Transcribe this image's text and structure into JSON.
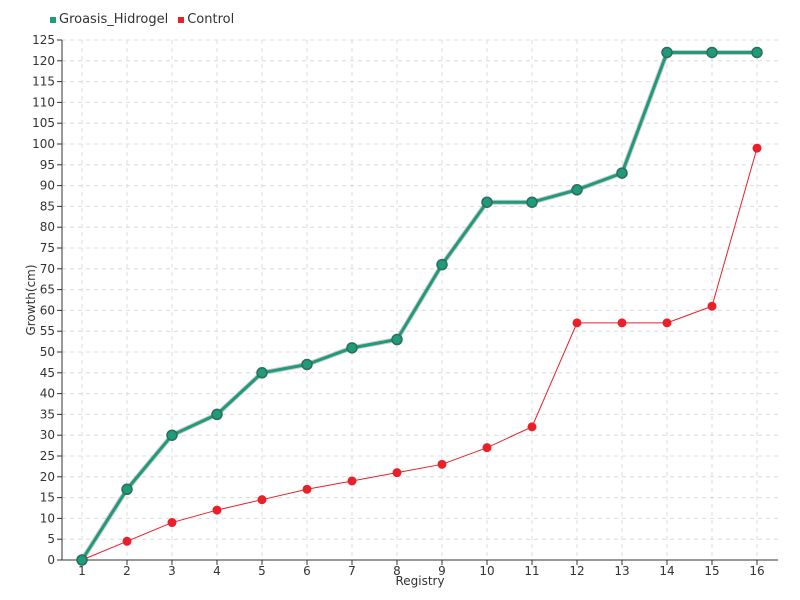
{
  "chart_data": {
    "type": "line",
    "categories": [
      "1",
      "2",
      "3",
      "4",
      "5",
      "6",
      "7",
      "8",
      "9",
      "10",
      "11",
      "12",
      "13",
      "14",
      "15",
      "16"
    ],
    "series": [
      {
        "name": "Groasis_Hidrogel",
        "color": "#1f9a7a",
        "values": [
          0,
          17,
          30,
          35,
          45,
          47,
          51,
          53,
          71,
          86,
          86,
          89,
          93,
          122,
          122,
          122
        ]
      },
      {
        "name": "Control",
        "color": "#e8202a",
        "values": [
          0,
          4.5,
          9,
          12,
          14.5,
          17,
          19,
          21,
          23,
          27,
          32,
          57,
          57,
          57,
          61,
          99
        ]
      }
    ],
    "xlabel": "Registry",
    "ylabel": "Growth(cm)",
    "ylim": [
      0,
      125
    ],
    "yticks": [
      0,
      5,
      10,
      15,
      20,
      25,
      30,
      35,
      40,
      45,
      50,
      55,
      60,
      65,
      70,
      75,
      80,
      85,
      90,
      95,
      100,
      105,
      110,
      115,
      120,
      125
    ],
    "grid": true,
    "legend_position": "top-left"
  }
}
